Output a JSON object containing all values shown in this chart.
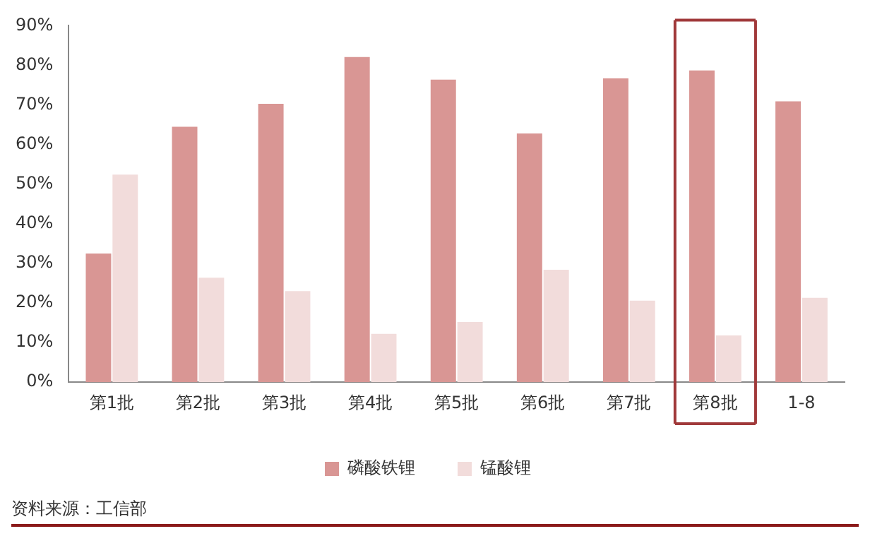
{
  "chart_data": {
    "type": "bar",
    "categories": [
      "第1批",
      "第2批",
      "第3批",
      "第4批",
      "第5批",
      "第6批",
      "第7批",
      "第8批",
      "1-8"
    ],
    "series": [
      {
        "name": "磷酸铁锂",
        "color": "#d99694",
        "values": [
          32.5,
          64.5,
          70.3,
          82.1,
          76.4,
          62.8,
          76.7,
          78.7,
          70.9
        ]
      },
      {
        "name": "锰酸锂",
        "color": "#f2dcdb",
        "values": [
          52.4,
          26.4,
          23,
          12.2,
          15.2,
          28.4,
          20.6,
          11.8,
          21.3
        ]
      }
    ],
    "ylim": [
      0,
      90
    ],
    "yticks": [
      {
        "value": 0,
        "label": "0%"
      },
      {
        "value": 10,
        "label": "10%"
      },
      {
        "value": 20,
        "label": "20%"
      },
      {
        "value": 30,
        "label": "30%"
      },
      {
        "value": 40,
        "label": "40%"
      },
      {
        "value": 50,
        "label": "50%"
      },
      {
        "value": 60,
        "label": "60%"
      },
      {
        "value": 70,
        "label": "70%"
      },
      {
        "value": 80,
        "label": "80%"
      },
      {
        "value": 90,
        "label": "90%"
      }
    ],
    "grid": false,
    "legend": "bottom",
    "annotations": [
      "资料来源：工信部"
    ]
  }
}
